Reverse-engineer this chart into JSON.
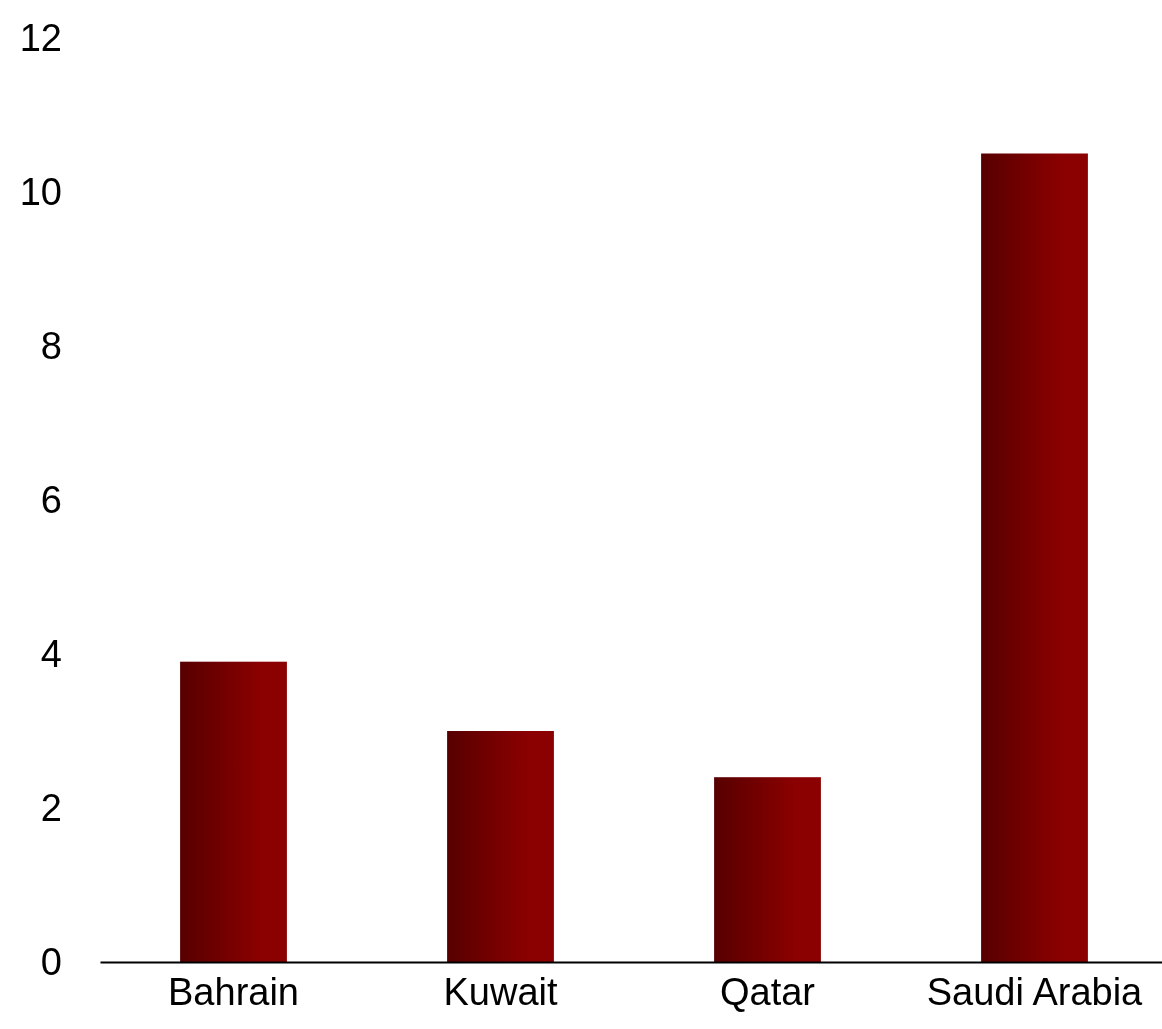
{
  "chart_data": {
    "type": "bar",
    "categories": [
      "Bahrain",
      "Kuwait",
      "Qatar",
      "Saudi Arabia"
    ],
    "values": [
      3.9,
      3.0,
      2.4,
      10.5
    ],
    "color": "#8b0000",
    "ylim": [
      0,
      12
    ],
    "yticks": [
      0,
      2,
      4,
      6,
      8,
      10,
      12
    ],
    "grid": false
  }
}
